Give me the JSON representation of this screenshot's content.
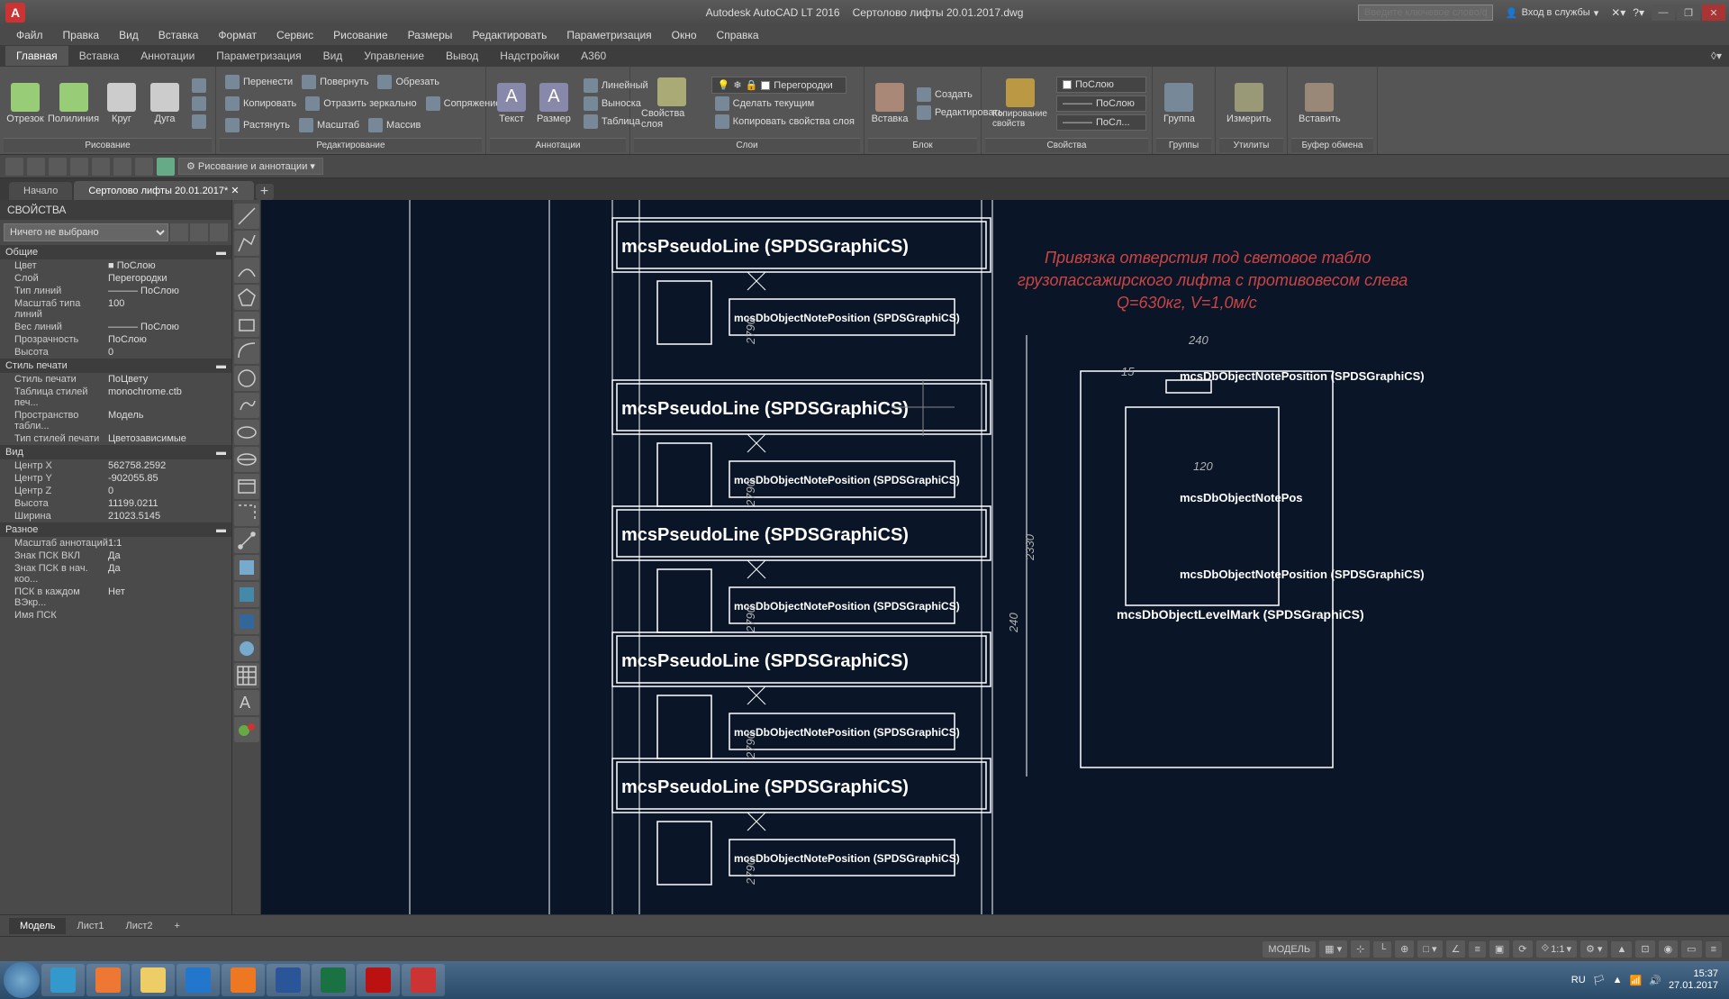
{
  "colors": {
    "titlebar": "#4a4a4a",
    "ribbon": "#555",
    "canvas": "#0a1628",
    "accent": "#c33"
  },
  "app": {
    "name": "Autodesk AutoCAD LT 2016",
    "file": "Сертолово лифты 20.01.2017.dwg",
    "icon": "A"
  },
  "search_placeholder": "Введите ключевое слово/фразу",
  "sign_in": "Вход в службы",
  "menubar": [
    "Файл",
    "Правка",
    "Вид",
    "Вставка",
    "Формат",
    "Сервис",
    "Рисование",
    "Размеры",
    "Редактировать",
    "Параметризация",
    "Окно",
    "Справка"
  ],
  "ribbon_tabs": [
    "Главная",
    "Вставка",
    "Аннотации",
    "Параметризация",
    "Вид",
    "Управление",
    "Вывод",
    "Надстройки",
    "A360"
  ],
  "ribbon_active": 0,
  "ribbon_panels": {
    "draw": {
      "title": "Рисование",
      "big": [
        {
          "l": "Отрезок"
        },
        {
          "l": "Полилиния"
        },
        {
          "l": "Круг"
        },
        {
          "l": "Дуга"
        }
      ]
    },
    "modify": {
      "title": "Редактирование",
      "rows": [
        [
          "Перенести",
          "Повернуть",
          "Обрезать"
        ],
        [
          "Копировать",
          "Отразить зеркально",
          "Сопряжение"
        ],
        [
          "Растянуть",
          "Масштаб",
          "Массив"
        ]
      ]
    },
    "annot": {
      "title": "Аннотации",
      "big": [
        {
          "l": "Текст"
        },
        {
          "l": "Размер"
        }
      ],
      "rows": [
        [
          "Линейный"
        ],
        [
          "Выноска"
        ],
        [
          "Таблица"
        ]
      ]
    },
    "layers": {
      "title": "Слои",
      "big": [
        {
          "l": "Свойства слоя"
        }
      ],
      "dd": "Перегородки",
      "rows": [
        [
          "Сделать текущим"
        ],
        [
          "Копировать свойства слоя"
        ]
      ]
    },
    "block": {
      "title": "Блок",
      "big": [
        {
          "l": "Вставка"
        }
      ],
      "rows": [
        [
          "Создать"
        ],
        [
          "Редактировать"
        ]
      ]
    },
    "props": {
      "title": "Свойства",
      "big": [
        {
          "l": "Копирование свойств"
        }
      ],
      "dd1": "ПоСлою",
      "dd2": "ПоСлою",
      "dd3": "ПоСл..."
    },
    "groups": {
      "title": "Группы",
      "big": [
        {
          "l": "Группа"
        }
      ]
    },
    "utils": {
      "title": "Утилиты",
      "big": [
        {
          "l": "Измерить"
        }
      ]
    },
    "clip": {
      "title": "Буфер обмена",
      "big": [
        {
          "l": "Вставить"
        }
      ]
    }
  },
  "qat_workspace": "Рисование и аннотации",
  "doc_tabs": [
    {
      "l": "Начало",
      "active": false
    },
    {
      "l": "Сертолово лифты 20.01.2017*",
      "active": true
    }
  ],
  "props": {
    "title": "СВОЙСТВА",
    "selection": "Ничего не выбрано",
    "sections": [
      {
        "name": "Общие",
        "rows": [
          [
            "Цвет",
            "■ ПоСлою"
          ],
          [
            "Слой",
            "Перегородки"
          ],
          [
            "Тип линий",
            "——— ПоСлою"
          ],
          [
            "Масштаб типа линий",
            "100"
          ],
          [
            "Вес линий",
            "——— ПоСлою"
          ],
          [
            "Прозрачность",
            "ПоСлою"
          ],
          [
            "Высота",
            "0"
          ]
        ]
      },
      {
        "name": "Стиль печати",
        "rows": [
          [
            "Стиль печати",
            "ПоЦвету"
          ],
          [
            "Таблица стилей печ...",
            "monochrome.ctb"
          ],
          [
            "Пространство табли...",
            "Модель"
          ],
          [
            "Тип стилей печати",
            "Цветозависимые"
          ]
        ]
      },
      {
        "name": "Вид",
        "rows": [
          [
            "Центр X",
            "562758.2592"
          ],
          [
            "Центр Y",
            "-902055.85"
          ],
          [
            "Центр Z",
            "0"
          ],
          [
            "Высота",
            "11199.0211"
          ],
          [
            "Ширина",
            "21023.5145"
          ]
        ]
      },
      {
        "name": "Разное",
        "rows": [
          [
            "Масштаб аннотаций",
            "1:1"
          ],
          [
            "Знак ПСК ВКЛ",
            "Да"
          ],
          [
            "Знак ПСК в нач. коо...",
            "Да"
          ],
          [
            "ПСК в каждом ВЭкр...",
            "Нет"
          ],
          [
            "Имя ПСК",
            ""
          ]
        ]
      }
    ]
  },
  "canvas_labels": {
    "pseudo": "mcsPseudoLine (SPDSGraphiCS)",
    "note": "mcsDbObjectNotePosition (SPDSGraphiCS)",
    "level": "mcsDbObjectLevelMark (SPDSGraphiCS)",
    "notepos": "mcsDbObjectNotePos",
    "red1": "Привязка отверстия под световое табло",
    "red2": "грузопассажирского лифта с противовесом слева",
    "red3": "Q=630кг, V=1,0м/с",
    "d240": "240",
    "d120": "120",
    "d2330": "2330",
    "d15": "15",
    "d2790": "2790"
  },
  "layout_tabs": [
    "Модель",
    "Лист1",
    "Лист2"
  ],
  "layout_active": 0,
  "status": {
    "model": "МОДЕЛЬ",
    "scale": "1:1"
  },
  "tray": {
    "lang": "RU",
    "time": "15:37",
    "date": "27.01.2017"
  }
}
